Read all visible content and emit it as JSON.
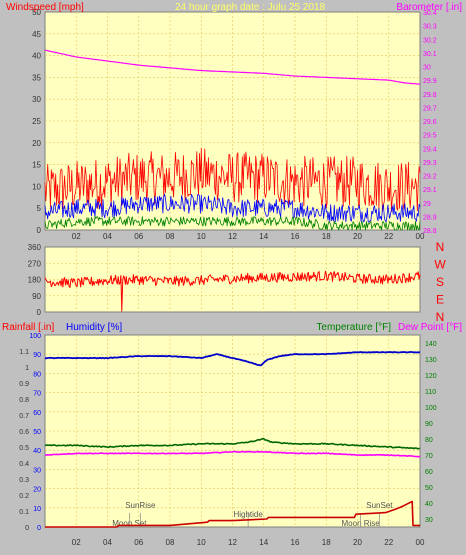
{
  "header": {
    "left_label": "Windspeed [mph]",
    "title": "24 hour graph date : Julu 25 2018",
    "right_label": "Barometer [.in]"
  },
  "colors": {
    "page_bg": "#c0c0c0",
    "plot_bg": "#ffffc0",
    "grid": "#e4c65a",
    "wind": "#ff0000",
    "gust": "#0000ff",
    "avg": "#008000",
    "barometer": "#ff00ff",
    "dir": "#ff0000",
    "rain": "#cc0000",
    "humidity": "#0000cc",
    "temperature": "#006600",
    "dewpoint": "#ff00ff",
    "axis_red": "#ff0000",
    "axis_blue": "#0000ff",
    "axis_green": "#008000",
    "axis_magenta": "#ff00ff"
  },
  "chart_data": [
    {
      "type": "line",
      "id": "wind_baro",
      "title": "24 hour graph date : Julu 25 2018",
      "ylabel": "Windspeed [mph]",
      "y2label": "Barometer [.in]",
      "x_ticks": [
        "02",
        "04",
        "06",
        "08",
        "10",
        "12",
        "14",
        "16",
        "18",
        "20",
        "22",
        "00"
      ],
      "y_ticks": [
        0,
        5,
        10,
        15,
        20,
        25,
        30,
        35,
        40,
        45,
        50
      ],
      "y2_ticks": [
        "28.8",
        "28.9",
        "29",
        "29.1",
        "29.2",
        "29.3",
        "29.4",
        "29.5",
        "29.6",
        "29.7",
        "29.8",
        "29.9",
        "30",
        "30.1",
        "30.2",
        "30.3",
        "30.4"
      ],
      "ylim": [
        0,
        50
      ],
      "y2lim": [
        28.8,
        30.4
      ],
      "xlim": [
        0,
        24
      ],
      "grid": true,
      "series": [
        {
          "axis": "y2",
          "x": [
            0,
            2,
            4,
            6,
            8,
            10,
            12,
            14,
            16,
            18,
            20,
            22,
            23,
            24
          ],
          "values": [
            30.12,
            30.07,
            30.04,
            30.01,
            29.99,
            29.97,
            29.96,
            29.95,
            29.93,
            29.92,
            29.91,
            29.9,
            29.88,
            29.87
          ]
        },
        {
          "axis": "y",
          "x": [
            0,
            2,
            4,
            6,
            8,
            10,
            12,
            14,
            16,
            18,
            20,
            22,
            24
          ],
          "values": [
            9,
            10,
            11,
            12,
            12,
            13,
            12,
            12,
            11,
            11,
            11,
            10,
            10
          ]
        },
        {
          "axis": "y",
          "x": [
            0,
            2,
            4,
            6,
            8,
            10,
            12,
            14,
            16,
            18,
            20,
            22,
            24
          ],
          "values": [
            4,
            5,
            5,
            6,
            6,
            6,
            5,
            5,
            5,
            4,
            4,
            4,
            4
          ]
        },
        {
          "axis": "y",
          "x": [
            0,
            2,
            4,
            6,
            8,
            10,
            12,
            14,
            16,
            18,
            20,
            22,
            24
          ],
          "values": [
            1,
            2,
            2,
            2,
            2,
            2,
            2,
            2,
            2,
            1,
            1,
            1,
            1
          ]
        }
      ]
    },
    {
      "type": "line",
      "id": "wind_direction",
      "y_ticks": [
        0,
        90,
        180,
        270,
        360
      ],
      "compass": [
        "N",
        "W",
        "S",
        "E",
        "N"
      ],
      "ylim": [
        0,
        360
      ],
      "xlim": [
        0,
        24
      ],
      "grid": true,
      "series": [
        {
          "x": [
            0,
            2,
            4,
            6,
            8,
            10,
            12,
            14,
            16,
            18,
            20,
            22,
            24
          ],
          "values": [
            170,
            160,
            175,
            180,
            170,
            175,
            185,
            190,
            195,
            200,
            185,
            180,
            200
          ]
        }
      ]
    },
    {
      "type": "line",
      "id": "rain_hum_temp",
      "rain_label": "Rainfall [.in]",
      "humidity_label": "Humidity [%]",
      "temperature_label": "Temperature [°F]",
      "dewpoint_label": "Dew Point [°F]",
      "x_ticks": [
        "02",
        "04",
        "06",
        "08",
        "10",
        "12",
        "14",
        "16",
        "18",
        "20",
        "22",
        "00"
      ],
      "rain_ticks": [
        "0",
        "0.1",
        "0.2",
        "0.3",
        "0.4",
        "0.5",
        "0.6",
        "0.7",
        "0.8",
        "0.9",
        "1",
        "1.1"
      ],
      "humidity_ticks": [
        0,
        10,
        20,
        30,
        40,
        50,
        60,
        70,
        80,
        90,
        100
      ],
      "temp_ticks": [
        30,
        40,
        50,
        60,
        70,
        80,
        90,
        100,
        110,
        120,
        130,
        140
      ],
      "rain_lim": [
        0,
        1.2
      ],
      "humidity_lim": [
        0,
        100
      ],
      "temp_lim": [
        25,
        145
      ],
      "xlim": [
        0,
        24
      ],
      "grid": true,
      "annotations": [
        {
          "text": "Moon Set",
          "x": 5.4
        },
        {
          "text": "SunRise",
          "x": 6.1
        },
        {
          "text": "Hightide",
          "x": 13.0
        },
        {
          "text": "SunSet",
          "x": 21.4
        },
        {
          "text": "Moon Rise",
          "x": 20.2
        }
      ],
      "series": [
        {
          "axis": "rain",
          "x": [
            0,
            1,
            3,
            4.6,
            4.7,
            8,
            10.4,
            10.5,
            12,
            14.2,
            14.3,
            19.8,
            19.9,
            21.8,
            22.4,
            22.9,
            23.5,
            23.55,
            24
          ],
          "values": [
            0,
            0,
            0,
            0,
            0.01,
            0.01,
            0.03,
            0.04,
            0.04,
            0.05,
            0.06,
            0.06,
            0.08,
            0.09,
            0.11,
            0.13,
            0.16,
            0.01,
            0.01
          ]
        },
        {
          "axis": "humidity",
          "x": [
            0,
            1,
            2,
            4,
            6,
            8,
            10,
            11,
            12,
            13,
            13.8,
            14.2,
            15,
            16,
            18,
            20,
            22,
            24
          ],
          "values": [
            88,
            88,
            88,
            88,
            89,
            89,
            88,
            90,
            88,
            86,
            84,
            87,
            89,
            90,
            90,
            91,
            91,
            91
          ]
        },
        {
          "axis": "temp",
          "x": [
            0,
            2,
            4,
            6,
            8,
            10,
            12,
            13,
            14,
            14.5,
            16,
            18,
            20,
            22,
            24
          ],
          "values": [
            76,
            76,
            75,
            76,
            76,
            77,
            77,
            78,
            80,
            78,
            77,
            77,
            76,
            75,
            74
          ]
        },
        {
          "axis": "temp",
          "x": [
            0,
            2,
            4,
            6,
            8,
            10,
            12,
            14,
            16,
            18,
            20,
            22,
            24
          ],
          "values": [
            70,
            71,
            71,
            71,
            71,
            71,
            72,
            72,
            71,
            71,
            70,
            70,
            69
          ]
        }
      ]
    }
  ]
}
